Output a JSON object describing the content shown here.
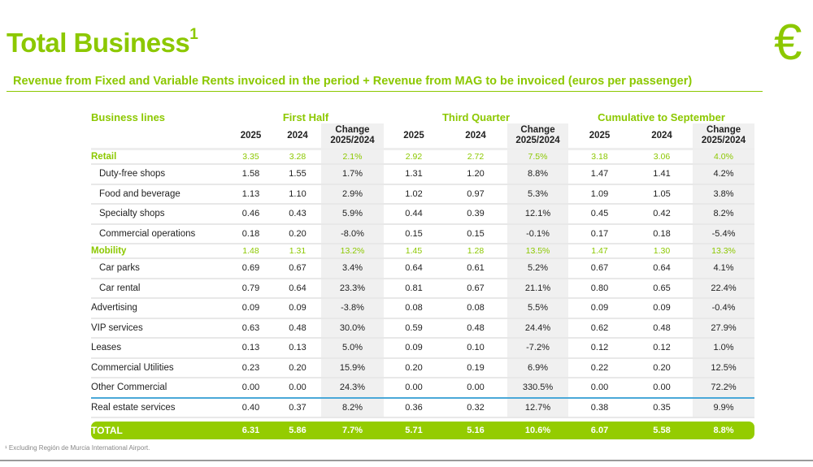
{
  "header": {
    "title": "Total Business",
    "title_sup": "1",
    "subtitle": "Revenue from Fixed and Variable Rents invoiced in the period + Revenue from MAG to be invoiced (euros per passenger)",
    "icon": "euro-icon"
  },
  "table": {
    "business_lines_label": "Business lines",
    "groups": [
      "First Half",
      "Third Quarter",
      "Cumulative to September"
    ],
    "columns": [
      "2025",
      "2024",
      "Change 2025/2024"
    ],
    "rows": [
      {
        "label": "Retail",
        "type": "main",
        "values": [
          "3.35",
          "3.28",
          "2.1%",
          "2.92",
          "2.72",
          "7.5%",
          "3.18",
          "3.06",
          "4.0%"
        ]
      },
      {
        "label": "Duty-free shops",
        "type": "sub",
        "values": [
          "1.58",
          "1.55",
          "1.7%",
          "1.31",
          "1.20",
          "8.8%",
          "1.47",
          "1.41",
          "4.2%"
        ]
      },
      {
        "label": "Food and beverage",
        "type": "sub",
        "values": [
          "1.13",
          "1.10",
          "2.9%",
          "1.02",
          "0.97",
          "5.3%",
          "1.09",
          "1.05",
          "3.8%"
        ]
      },
      {
        "label": "Specialty shops",
        "type": "sub",
        "values": [
          "0.46",
          "0.43",
          "5.9%",
          "0.44",
          "0.39",
          "12.1%",
          "0.45",
          "0.42",
          "8.2%"
        ]
      },
      {
        "label": "Commercial operations",
        "type": "sub",
        "values": [
          "0.18",
          "0.20",
          "-8.0%",
          "0.15",
          "0.15",
          "-0.1%",
          "0.17",
          "0.18",
          "-5.4%"
        ]
      },
      {
        "label": "Mobility",
        "type": "main",
        "values": [
          "1.48",
          "1.31",
          "13.2%",
          "1.45",
          "1.28",
          "13.5%",
          "1.47",
          "1.30",
          "13.3%"
        ]
      },
      {
        "label": "Car parks",
        "type": "sub",
        "values": [
          "0.69",
          "0.67",
          "3.4%",
          "0.64",
          "0.61",
          "5.2%",
          "0.67",
          "0.64",
          "4.1%"
        ]
      },
      {
        "label": "Car rental",
        "type": "sub",
        "values": [
          "0.79",
          "0.64",
          "23.3%",
          "0.81",
          "0.67",
          "21.1%",
          "0.80",
          "0.65",
          "22.4%"
        ]
      },
      {
        "label": "Advertising",
        "type": "item",
        "values": [
          "0.09",
          "0.09",
          "-3.8%",
          "0.08",
          "0.08",
          "5.5%",
          "0.09",
          "0.09",
          "-0.4%"
        ]
      },
      {
        "label": "VIP services",
        "type": "item",
        "values": [
          "0.63",
          "0.48",
          "30.0%",
          "0.59",
          "0.48",
          "24.4%",
          "0.62",
          "0.48",
          "27.9%"
        ]
      },
      {
        "label": "Leases",
        "type": "item",
        "values": [
          "0.13",
          "0.13",
          "5.0%",
          "0.09",
          "0.10",
          "-7.2%",
          "0.12",
          "0.12",
          "1.0%"
        ]
      },
      {
        "label": "Commercial Utilities",
        "type": "item",
        "values": [
          "0.23",
          "0.20",
          "15.9%",
          "0.20",
          "0.19",
          "6.9%",
          "0.22",
          "0.20",
          "12.5%"
        ]
      },
      {
        "label": "Other Commercial",
        "type": "item",
        "values": [
          "0.00",
          "0.00",
          "24.3%",
          "0.00",
          "0.00",
          "330.5%",
          "0.00",
          "0.00",
          "72.2%"
        ]
      },
      {
        "label": "Real estate services",
        "type": "item",
        "values": [
          "0.40",
          "0.37",
          "8.2%",
          "0.36",
          "0.32",
          "12.7%",
          "0.38",
          "0.35",
          "9.9%"
        ]
      },
      {
        "label": "TOTAL",
        "type": "total",
        "values": [
          "6.31",
          "5.86",
          "7.7%",
          "5.71",
          "5.16",
          "10.6%",
          "6.07",
          "5.58",
          "8.8%"
        ]
      }
    ]
  },
  "footnote": "¹ Excluding Región de Murcia International Airport.",
  "colors": {
    "accent": "#8cc800",
    "total_bar": "#94cc00",
    "separator": "#4aa8d8"
  }
}
